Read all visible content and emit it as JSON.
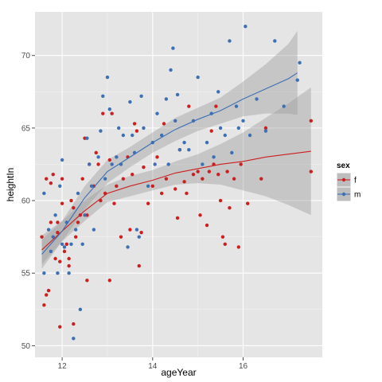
{
  "chart_data": {
    "type": "scatter",
    "xlabel": "ageYear",
    "ylabel": "heightIn",
    "xlim": [
      11.4,
      17.75
    ],
    "ylim": [
      49.2,
      73.0
    ],
    "x_ticks": [
      12,
      14,
      16
    ],
    "y_ticks": [
      50,
      55,
      60,
      65,
      70
    ],
    "x_tick_labels": [
      "12",
      "14",
      "16"
    ],
    "y_tick_labels": [
      "50",
      "55",
      "60",
      "65",
      "70"
    ],
    "grid": true,
    "background": "#e5e5e5",
    "legend": {
      "title": "sex",
      "placement": "right",
      "entries": [
        {
          "label": "f",
          "color": "#cc1f1f"
        },
        {
          "label": "m",
          "color": "#3d6fb5"
        }
      ]
    },
    "series": [
      {
        "name": "f",
        "color": "#cc1f1f",
        "points": [
          [
            11.55,
            57.5
          ],
          [
            11.6,
            52.8
          ],
          [
            11.65,
            61.5
          ],
          [
            11.65,
            53.5
          ],
          [
            11.7,
            53.8
          ],
          [
            11.75,
            61.2
          ],
          [
            11.75,
            58.5
          ],
          [
            11.8,
            61.8
          ],
          [
            11.85,
            56.0
          ],
          [
            11.9,
            57.8
          ],
          [
            11.95,
            51.3
          ],
          [
            11.9,
            58.5
          ],
          [
            11.95,
            55.8
          ],
          [
            12.0,
            61.5
          ],
          [
            12.0,
            59.8
          ],
          [
            12.05,
            56.5
          ],
          [
            12.1,
            57.0
          ],
          [
            12.15,
            55.5
          ],
          [
            12.15,
            56.0
          ],
          [
            12.2,
            60.0
          ],
          [
            12.25,
            59.5
          ],
          [
            12.25,
            51.5
          ],
          [
            12.3,
            57.5
          ],
          [
            12.35,
            58.5
          ],
          [
            12.4,
            59.0
          ],
          [
            12.45,
            61.5
          ],
          [
            12.5,
            64.3
          ],
          [
            12.55,
            54.5
          ],
          [
            12.55,
            59.0
          ],
          [
            12.6,
            62.5
          ],
          [
            12.7,
            61.0
          ],
          [
            12.75,
            63.3
          ],
          [
            12.8,
            62.5
          ],
          [
            12.85,
            60.0
          ],
          [
            12.9,
            66.0
          ],
          [
            12.95,
            60.5
          ],
          [
            13.05,
            54.5
          ],
          [
            13.05,
            62.8
          ],
          [
            13.1,
            66.0
          ],
          [
            13.15,
            59.8
          ],
          [
            13.2,
            61.0
          ],
          [
            13.3,
            57.5
          ],
          [
            13.35,
            61.5
          ],
          [
            13.45,
            63.0
          ],
          [
            13.5,
            58.0
          ],
          [
            13.55,
            61.8
          ],
          [
            13.6,
            65.3
          ],
          [
            13.65,
            64.8
          ],
          [
            13.7,
            55.5
          ],
          [
            13.75,
            57.8
          ],
          [
            13.8,
            62.3
          ],
          [
            13.9,
            59.8
          ],
          [
            14.0,
            61.0
          ],
          [
            14.1,
            63.0
          ],
          [
            14.2,
            60.5
          ],
          [
            14.25,
            65.3
          ],
          [
            14.3,
            61.5
          ],
          [
            14.5,
            60.8
          ],
          [
            14.55,
            58.8
          ],
          [
            14.6,
            63.5
          ],
          [
            14.7,
            61.3
          ],
          [
            14.75,
            60.5
          ],
          [
            14.8,
            66.5
          ],
          [
            14.9,
            61.8
          ],
          [
            15.0,
            62.0
          ],
          [
            15.05,
            59.0
          ],
          [
            15.1,
            61.5
          ],
          [
            15.2,
            58.3
          ],
          [
            15.25,
            62.0
          ],
          [
            15.3,
            64.8
          ],
          [
            15.35,
            62.5
          ],
          [
            15.4,
            66.5
          ],
          [
            15.45,
            61.8
          ],
          [
            15.5,
            60.0
          ],
          [
            15.55,
            57.5
          ],
          [
            15.6,
            57.0
          ],
          [
            15.65,
            62.0
          ],
          [
            15.7,
            59.5
          ],
          [
            15.8,
            61.5
          ],
          [
            15.9,
            56.8
          ],
          [
            15.95,
            62.5
          ],
          [
            16.1,
            59.8
          ],
          [
            16.4,
            61.5
          ],
          [
            16.5,
            65.0
          ],
          [
            17.5,
            62.0
          ],
          [
            17.5,
            65.5
          ]
        ],
        "smooth": [
          [
            11.55,
            56.6
          ],
          [
            12.0,
            57.9
          ],
          [
            12.5,
            59.3
          ],
          [
            13.0,
            60.5
          ],
          [
            13.5,
            61.0
          ],
          [
            14.0,
            61.4
          ],
          [
            14.5,
            61.9
          ],
          [
            15.0,
            62.2
          ],
          [
            15.5,
            62.5
          ],
          [
            16.0,
            62.7
          ],
          [
            16.5,
            63.0
          ],
          [
            17.0,
            63.2
          ],
          [
            17.5,
            63.4
          ]
        ],
        "band": [
          [
            11.55,
            55.6,
            57.6
          ],
          [
            12.0,
            57.2,
            58.6
          ],
          [
            12.5,
            58.6,
            60.0
          ],
          [
            13.0,
            59.9,
            61.1
          ],
          [
            13.5,
            60.3,
            61.7
          ],
          [
            14.0,
            60.7,
            62.1
          ],
          [
            14.5,
            61.1,
            62.7
          ],
          [
            15.0,
            61.2,
            63.2
          ],
          [
            15.5,
            61.1,
            63.9
          ],
          [
            16.0,
            60.7,
            64.7
          ],
          [
            16.5,
            60.3,
            65.7
          ],
          [
            17.0,
            59.7,
            66.7
          ],
          [
            17.5,
            59.0,
            67.8
          ]
        ]
      },
      {
        "name": "m",
        "color": "#3d6fb5",
        "points": [
          [
            11.6,
            55.0
          ],
          [
            11.6,
            60.5
          ],
          [
            11.7,
            58.0
          ],
          [
            11.75,
            56.5
          ],
          [
            11.8,
            57.5
          ],
          [
            11.85,
            59.0
          ],
          [
            11.9,
            55.0
          ],
          [
            11.95,
            61.0
          ],
          [
            12.0,
            62.8
          ],
          [
            12.0,
            57.0
          ],
          [
            12.05,
            56.8
          ],
          [
            12.1,
            58.5
          ],
          [
            12.15,
            55.0
          ],
          [
            12.2,
            57.0
          ],
          [
            12.25,
            50.5
          ],
          [
            12.3,
            58.0
          ],
          [
            12.35,
            60.5
          ],
          [
            12.4,
            52.5
          ],
          [
            12.45,
            57.0
          ],
          [
            12.5,
            59.0
          ],
          [
            12.55,
            64.3
          ],
          [
            12.6,
            62.5
          ],
          [
            12.65,
            61.0
          ],
          [
            12.7,
            58.0
          ],
          [
            12.8,
            63.0
          ],
          [
            12.85,
            64.8
          ],
          [
            12.9,
            67.2
          ],
          [
            12.95,
            61.5
          ],
          [
            13.0,
            68.5
          ],
          [
            13.05,
            66.3
          ],
          [
            13.1,
            62.5
          ],
          [
            13.2,
            63.0
          ],
          [
            13.25,
            65.0
          ],
          [
            13.3,
            62.5
          ],
          [
            13.35,
            64.5
          ],
          [
            13.45,
            56.8
          ],
          [
            13.5,
            66.8
          ],
          [
            13.55,
            64.5
          ],
          [
            13.6,
            63.3
          ],
          [
            13.65,
            58.0
          ],
          [
            13.7,
            57.5
          ],
          [
            13.75,
            67.2
          ],
          [
            13.8,
            65.0
          ],
          [
            13.9,
            61.0
          ],
          [
            14.0,
            64.0
          ],
          [
            14.05,
            62.5
          ],
          [
            14.1,
            66.0
          ],
          [
            14.2,
            64.5
          ],
          [
            14.3,
            67.0
          ],
          [
            14.35,
            62.5
          ],
          [
            14.4,
            69.0
          ],
          [
            14.45,
            70.5
          ],
          [
            14.5,
            65.5
          ],
          [
            14.55,
            67.3
          ],
          [
            14.6,
            63.5
          ],
          [
            14.7,
            64.0
          ],
          [
            14.8,
            63.5
          ],
          [
            14.9,
            65.5
          ],
          [
            15.0,
            68.5
          ],
          [
            15.1,
            62.5
          ],
          [
            15.2,
            64.0
          ],
          [
            15.3,
            66.0
          ],
          [
            15.35,
            63.0
          ],
          [
            15.45,
            67.5
          ],
          [
            15.5,
            65.0
          ],
          [
            15.6,
            64.5
          ],
          [
            15.7,
            71.0
          ],
          [
            15.75,
            63.3
          ],
          [
            15.85,
            66.5
          ],
          [
            15.9,
            65.0
          ],
          [
            16.0,
            65.5
          ],
          [
            16.05,
            72.0
          ],
          [
            16.15,
            64.5
          ],
          [
            16.3,
            67.0
          ],
          [
            16.5,
            64.8
          ],
          [
            16.7,
            71.0
          ],
          [
            16.9,
            66.5
          ],
          [
            17.2,
            68.3
          ],
          [
            17.25,
            69.5
          ]
        ],
        "smooth": [
          [
            11.55,
            56.3
          ],
          [
            12.0,
            57.9
          ],
          [
            12.5,
            60.2
          ],
          [
            13.0,
            62.0
          ],
          [
            13.5,
            63.0
          ],
          [
            14.0,
            64.0
          ],
          [
            14.5,
            64.9
          ],
          [
            15.0,
            65.6
          ],
          [
            15.5,
            66.2
          ],
          [
            16.0,
            67.0
          ],
          [
            16.5,
            67.7
          ],
          [
            17.0,
            68.4
          ],
          [
            17.2,
            68.8
          ]
        ],
        "band": [
          [
            11.55,
            55.3,
            57.3
          ],
          [
            12.0,
            57.2,
            58.6
          ],
          [
            12.5,
            59.4,
            61.0
          ],
          [
            13.0,
            61.2,
            62.8
          ],
          [
            13.5,
            62.3,
            63.7
          ],
          [
            14.0,
            63.3,
            64.7
          ],
          [
            14.5,
            64.1,
            65.7
          ],
          [
            15.0,
            64.8,
            66.4
          ],
          [
            15.5,
            65.3,
            67.1
          ],
          [
            16.0,
            65.8,
            68.2
          ],
          [
            16.5,
            66.0,
            69.4
          ],
          [
            17.0,
            66.0,
            70.8
          ],
          [
            17.2,
            65.9,
            71.7
          ]
        ]
      }
    ]
  }
}
